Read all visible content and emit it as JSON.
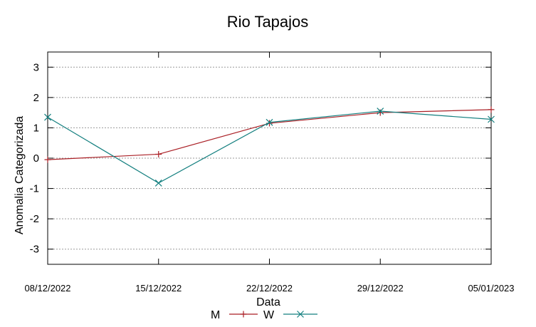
{
  "chart_data": {
    "type": "line",
    "title": "Rio Tapajos",
    "xlabel": "Data",
    "ylabel": "Anomalia Categorizada",
    "categories": [
      "08/12/2022",
      "15/12/2022",
      "22/12/2022",
      "29/12/2022",
      "05/01/2023"
    ],
    "ylim": [
      -3.5,
      3.5
    ],
    "yticks": [
      -3,
      -2,
      -1,
      0,
      1,
      2,
      3
    ],
    "ytick_labels": [
      "-3",
      "-2",
      "-1",
      "0",
      "1",
      "2",
      "3"
    ],
    "grid": true,
    "legend_position": "bottom-center",
    "series": [
      {
        "name": "M",
        "color": "#aa1f25",
        "marker": "plus",
        "values": [
          -0.05,
          0.13,
          1.15,
          1.5,
          1.6
        ]
      },
      {
        "name": "W",
        "color": "#137f7f",
        "marker": "cross",
        "values": [
          1.35,
          -0.82,
          1.18,
          1.55,
          1.28
        ]
      }
    ]
  }
}
